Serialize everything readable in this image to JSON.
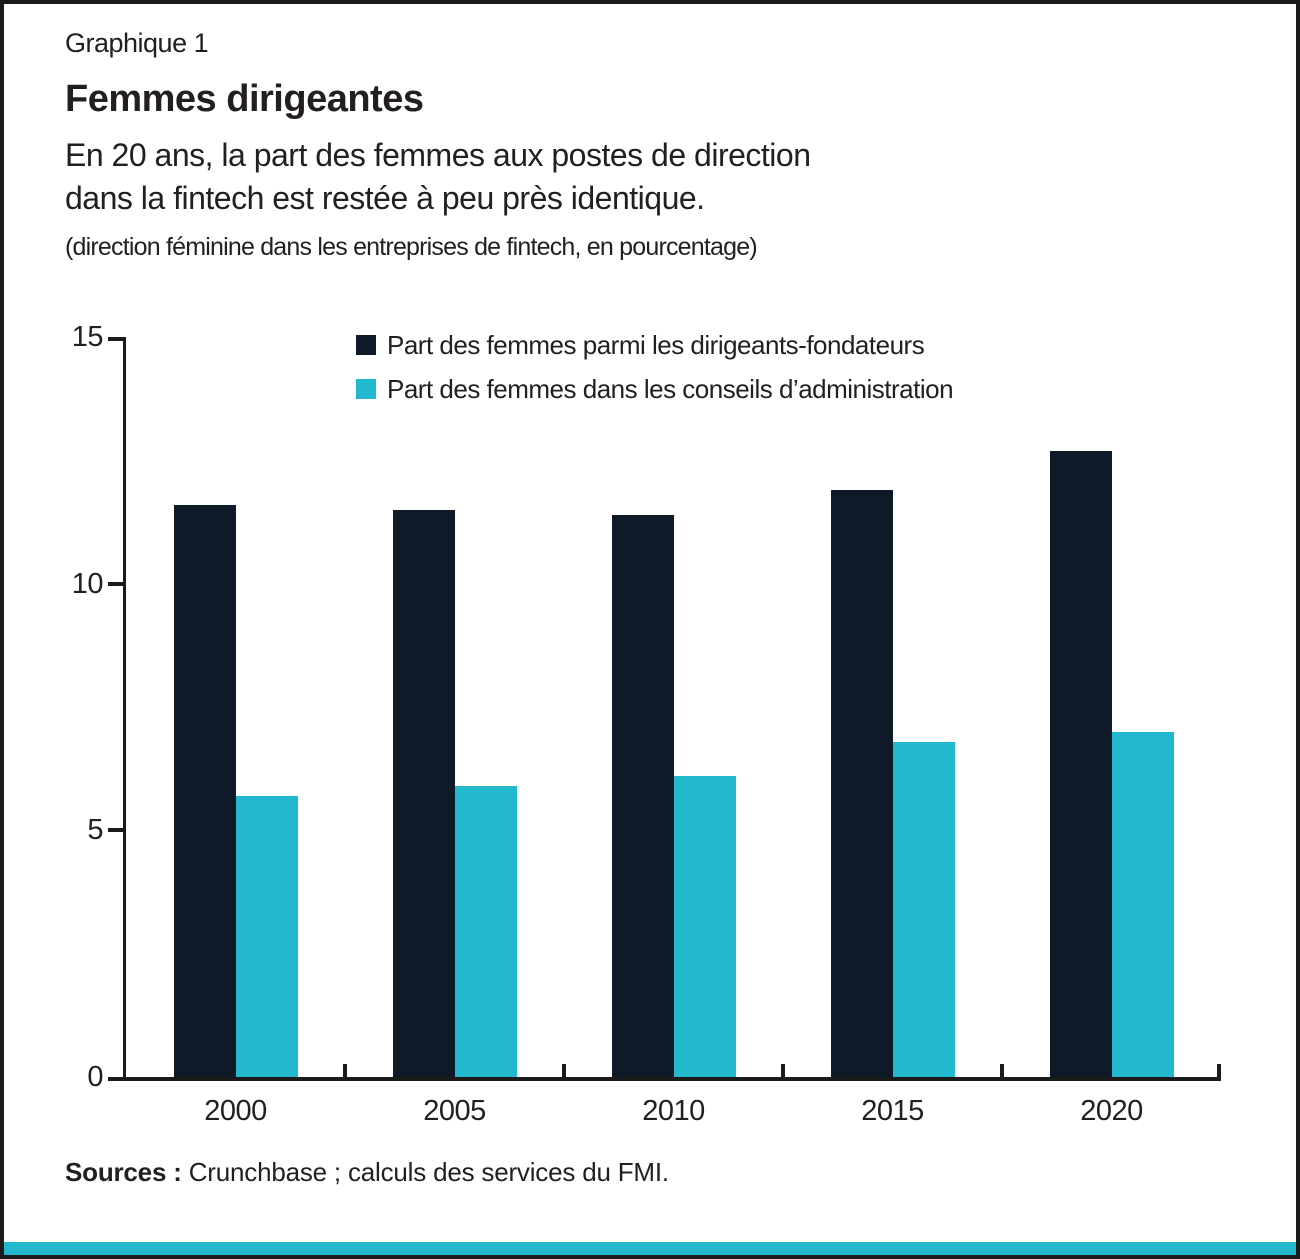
{
  "figure": {
    "label": "Graphique 1",
    "title": "Femmes dirigeantes",
    "subtitle": "En 20 ans, la part des femmes aux postes de direction\ndans la fintech est restée à peu près identique.",
    "note": "(direction féminine dans les entreprises de fintech, en pourcentage)",
    "source_bold": "Sources :",
    "source_rest": " Crunchbase ; calculs des services du FMI."
  },
  "colors": {
    "bar_dark_navy": "#0f1a29",
    "bar_teal": "#22b8cd",
    "frame_border": "#1b1b1b",
    "text": "#231f20",
    "accent_strip": "#22b8cd"
  },
  "chart_data": {
    "type": "bar",
    "categories": [
      "2000",
      "2005",
      "2010",
      "2015",
      "2020"
    ],
    "series": [
      {
        "name": "Part des femmes parmi les dirigeants-fondateurs",
        "color": "#0f1a29",
        "values": [
          11.6,
          11.5,
          11.4,
          11.9,
          12.7
        ]
      },
      {
        "name": "Part des femmes dans les conseils d’administration",
        "color": "#22b8cd",
        "values": [
          5.7,
          5.9,
          6.1,
          6.8,
          7.0
        ]
      }
    ],
    "title": "Femmes dirigeantes",
    "xlabel": "",
    "ylabel": "",
    "ylim": [
      0,
      15
    ],
    "yticks": [
      0,
      5,
      10,
      15
    ],
    "grid": false,
    "legend_position": "top-center"
  }
}
